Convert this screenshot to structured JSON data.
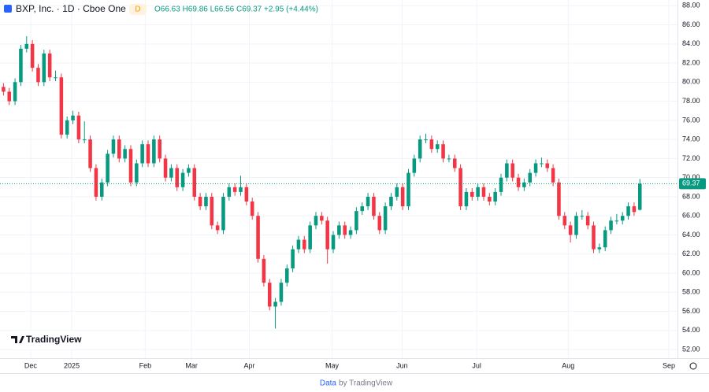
{
  "chart_data": {
    "type": "candlestick",
    "title": "BXP, Inc. · 1D · Cboe One",
    "badge": "D",
    "ohlc_text": "O66.63 H69.86 L66.56 C69.37 +2.95 (+4.44%)",
    "brand": "TradingView",
    "footer_link": "Data",
    "footer_text": "by TradingView",
    "up_color": "#089981",
    "down_color": "#f23645",
    "candles": [
      [
        79.5,
        79.9,
        78.6,
        79
      ],
      [
        79,
        79.4,
        77.6,
        78
      ],
      [
        78,
        80.4,
        77.6,
        80
      ],
      [
        80,
        83.9,
        79.6,
        83.5
      ],
      [
        83.5,
        84.8,
        83.1,
        84
      ],
      [
        84,
        84.4,
        81.1,
        81.5
      ],
      [
        81.5,
        81.9,
        79.6,
        80
      ],
      [
        80,
        83.4,
        79.6,
        83
      ],
      [
        83,
        83.4,
        80.1,
        80.5
      ],
      [
        80.5,
        81.2,
        80.1,
        80.5
      ],
      [
        80.5,
        80.9,
        74.1,
        74.5
      ],
      [
        74.5,
        76.4,
        74.1,
        76
      ],
      [
        76,
        77,
        75.6,
        76.5
      ],
      [
        76.5,
        76.9,
        73.6,
        74
      ],
      [
        74,
        75.9,
        73.6,
        74
      ],
      [
        74,
        74.4,
        70.6,
        71
      ],
      [
        71,
        71.4,
        67.6,
        68
      ],
      [
        68,
        69.9,
        67.6,
        69.5
      ],
      [
        69.5,
        72.9,
        69.1,
        72.5
      ],
      [
        72.5,
        74.4,
        72.1,
        74
      ],
      [
        74,
        74.4,
        71.6,
        72
      ],
      [
        72,
        73.4,
        71.6,
        73
      ],
      [
        73,
        73.4,
        69.1,
        69.5
      ],
      [
        69.5,
        71.9,
        69.1,
        71.5
      ],
      [
        71.5,
        73.9,
        71.1,
        73.5
      ],
      [
        73.5,
        73.9,
        71.1,
        71.5
      ],
      [
        71.5,
        74.4,
        71.1,
        74
      ],
      [
        74,
        74.4,
        71.6,
        72
      ],
      [
        72,
        72.4,
        69.6,
        70
      ],
      [
        70,
        71.4,
        69.6,
        71
      ],
      [
        71,
        71.4,
        68.6,
        69
      ],
      [
        69,
        70.9,
        68.6,
        70.5
      ],
      [
        70.5,
        71.4,
        70.1,
        71
      ],
      [
        71,
        71.4,
        67.6,
        68
      ],
      [
        68,
        68.4,
        66.6,
        67
      ],
      [
        67,
        68.4,
        66.6,
        68
      ],
      [
        68,
        68.4,
        64.6,
        65
      ],
      [
        65,
        65.4,
        64.1,
        64.5
      ],
      [
        64.5,
        68.4,
        64.1,
        68
      ],
      [
        68,
        69.4,
        67.6,
        69
      ],
      [
        69,
        69.4,
        68.1,
        68.5
      ],
      [
        68.5,
        70.2,
        68.1,
        69
      ],
      [
        69,
        69.4,
        67.1,
        67.5
      ],
      [
        67.5,
        67.9,
        65.6,
        66
      ],
      [
        66,
        66.4,
        61.1,
        61.5
      ],
      [
        61.5,
        61.9,
        58.6,
        59
      ],
      [
        59,
        59.4,
        56.1,
        56.5
      ],
      [
        56.5,
        57.4,
        54.2,
        57
      ],
      [
        57,
        59.4,
        56.6,
        59
      ],
      [
        59,
        60.9,
        58.6,
        60.5
      ],
      [
        60.5,
        62.9,
        60.1,
        62.5
      ],
      [
        62.5,
        63.9,
        62.1,
        63.5
      ],
      [
        63.5,
        63.9,
        62.1,
        62.5
      ],
      [
        62.5,
        65.4,
        62.1,
        65
      ],
      [
        65,
        66.4,
        64.6,
        66
      ],
      [
        66,
        66.4,
        65.1,
        65.5
      ],
      [
        65.5,
        65.9,
        61,
        62.5
      ],
      [
        62.5,
        64.4,
        62.1,
        64
      ],
      [
        64,
        65.4,
        63.6,
        65
      ],
      [
        65,
        65.4,
        63.6,
        64
      ],
      [
        64,
        64.9,
        63.6,
        64.5
      ],
      [
        64.5,
        66.9,
        64.1,
        66.5
      ],
      [
        66.5,
        67.4,
        66.1,
        67
      ],
      [
        67,
        68.4,
        66.6,
        68
      ],
      [
        68,
        68.4,
        65.6,
        66
      ],
      [
        66,
        66.4,
        64.1,
        64.5
      ],
      [
        64.5,
        67.4,
        64.1,
        67
      ],
      [
        67,
        68.4,
        66.6,
        68
      ],
      [
        68,
        69.4,
        67.6,
        69
      ],
      [
        69,
        69.4,
        66.6,
        67
      ],
      [
        67,
        70.9,
        66.6,
        70.5
      ],
      [
        70.5,
        72.4,
        70.1,
        72
      ],
      [
        72,
        74.4,
        71.6,
        74
      ],
      [
        74,
        74.6,
        73.6,
        74
      ],
      [
        74,
        74.4,
        72.6,
        73
      ],
      [
        73,
        73.9,
        72.6,
        73.5
      ],
      [
        73.5,
        73.9,
        71.6,
        72
      ],
      [
        72,
        72.4,
        71.6,
        72
      ],
      [
        72,
        72.4,
        70.6,
        71
      ],
      [
        71,
        71.4,
        66.6,
        67
      ],
      [
        67,
        68.9,
        66.6,
        68.5
      ],
      [
        68.5,
        68.9,
        67.6,
        68
      ],
      [
        68,
        69.4,
        67.6,
        69
      ],
      [
        69,
        69.4,
        67.6,
        68
      ],
      [
        68,
        68.4,
        67.1,
        67.5
      ],
      [
        67.5,
        68.9,
        67.1,
        68.5
      ],
      [
        68.5,
        70.4,
        68.1,
        70
      ],
      [
        70,
        71.9,
        69.6,
        71.5
      ],
      [
        71.5,
        71.9,
        69.6,
        70
      ],
      [
        70,
        70.4,
        68.6,
        69
      ],
      [
        69,
        69.9,
        68.6,
        69.5
      ],
      [
        69.5,
        70.9,
        69.1,
        70.5
      ],
      [
        70.5,
        71.9,
        70.1,
        71.5
      ],
      [
        71.5,
        72.1,
        71.1,
        71.5
      ],
      [
        71.5,
        71.9,
        70.6,
        71
      ],
      [
        71,
        71.4,
        69.1,
        69.5
      ],
      [
        69.5,
        69.9,
        65.6,
        66
      ],
      [
        66,
        66.4,
        64.6,
        65
      ],
      [
        65,
        65.4,
        63.2,
        64
      ],
      [
        64,
        66.4,
        63.6,
        66
      ],
      [
        66,
        66.6,
        65.6,
        66
      ],
      [
        66,
        66.4,
        64.6,
        65
      ],
      [
        65,
        65.4,
        62.1,
        62.5
      ],
      [
        62.5,
        63.1,
        62.1,
        62.7
      ],
      [
        62.7,
        64.9,
        62.3,
        64.5
      ],
      [
        64.5,
        65.9,
        64.1,
        65.5
      ],
      [
        65.5,
        66.2,
        65.1,
        65.5
      ],
      [
        65.5,
        66.4,
        65.1,
        66
      ],
      [
        66,
        67.4,
        65.6,
        67
      ],
      [
        67,
        67.4,
        66,
        66.4
      ],
      [
        66.63,
        69.86,
        66.56,
        69.37
      ]
    ],
    "xlim": [
      -0.6,
      116.5
    ],
    "xticks": [
      {
        "value": 4.7,
        "label": "Dec"
      },
      {
        "value": 11.8,
        "label": "2025"
      },
      {
        "value": 24.5,
        "label": "Feb"
      },
      {
        "value": 32.5,
        "label": "Mar"
      },
      {
        "value": 42.5,
        "label": "Apr"
      },
      {
        "value": 56.8,
        "label": "May"
      },
      {
        "value": 68.9,
        "label": "Jun"
      },
      {
        "value": 81.8,
        "label": "Jul"
      },
      {
        "value": 97.6,
        "label": "Aug"
      },
      {
        "value": 115,
        "label": "Sep"
      }
    ],
    "ylim": [
      51.1,
      88.6
    ],
    "yticks": [
      {
        "value": 52,
        "label": "52.00"
      },
      {
        "value": 54,
        "label": "54.00"
      },
      {
        "value": 56,
        "label": "56.00"
      },
      {
        "value": 58,
        "label": "58.00"
      },
      {
        "value": 60,
        "label": "60.00"
      },
      {
        "value": 62,
        "label": "62.00"
      },
      {
        "value": 64,
        "label": "64.00"
      },
      {
        "value": 66,
        "label": "66.00"
      },
      {
        "value": 68,
        "label": "68.00"
      },
      {
        "value": 70,
        "label": "70.00"
      },
      {
        "value": 72,
        "label": "72.00"
      },
      {
        "value": 74,
        "label": "74.00"
      },
      {
        "value": 76,
        "label": "76.00"
      },
      {
        "value": 78,
        "label": "78.00"
      },
      {
        "value": 80,
        "label": "80.00"
      },
      {
        "value": 82,
        "label": "82.00"
      },
      {
        "value": 84,
        "label": "84.00"
      },
      {
        "value": 86,
        "label": "86.00"
      },
      {
        "value": 88,
        "label": "88.00"
      }
    ]
  }
}
